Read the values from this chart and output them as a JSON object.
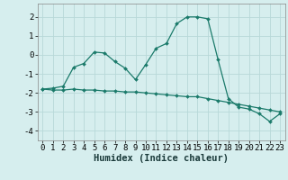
{
  "xlabel": "Humidex (Indice chaleur)",
  "background_color": "#d6eeee",
  "grid_color": "#b8d8d8",
  "line_color": "#1a7a6a",
  "x_ticks": [
    0,
    1,
    2,
    3,
    4,
    5,
    6,
    7,
    8,
    9,
    10,
    11,
    12,
    13,
    14,
    15,
    16,
    17,
    18,
    19,
    20,
    21,
    22,
    23
  ],
  "ylim": [
    -4.5,
    2.7
  ],
  "xlim": [
    -0.5,
    23.5
  ],
  "yticks": [
    -4,
    -3,
    -2,
    -1,
    0,
    1,
    2
  ],
  "series1_x": [
    0,
    1,
    2,
    3,
    4,
    5,
    6,
    7,
    8,
    9,
    10,
    11,
    12,
    13,
    14,
    15,
    16,
    17,
    18,
    19,
    20,
    21,
    22,
    23
  ],
  "series1_y": [
    -1.8,
    -1.75,
    -1.65,
    -0.65,
    -0.45,
    0.15,
    0.1,
    -0.35,
    -0.7,
    -1.3,
    -0.5,
    0.35,
    0.6,
    1.65,
    2.0,
    2.0,
    1.9,
    -0.25,
    -2.3,
    -2.75,
    -2.85,
    -3.1,
    -3.5,
    -3.1
  ],
  "series2_x": [
    0,
    1,
    2,
    3,
    4,
    5,
    6,
    7,
    8,
    9,
    10,
    11,
    12,
    13,
    14,
    15,
    16,
    17,
    18,
    19,
    20,
    21,
    22,
    23
  ],
  "series2_y": [
    -1.8,
    -1.85,
    -1.85,
    -1.8,
    -1.85,
    -1.85,
    -1.9,
    -1.9,
    -1.95,
    -1.95,
    -2.0,
    -2.05,
    -2.1,
    -2.15,
    -2.2,
    -2.2,
    -2.3,
    -2.4,
    -2.5,
    -2.6,
    -2.7,
    -2.8,
    -2.9,
    -3.0
  ],
  "tick_fontsize": 6.5,
  "xlabel_fontsize": 7.5
}
